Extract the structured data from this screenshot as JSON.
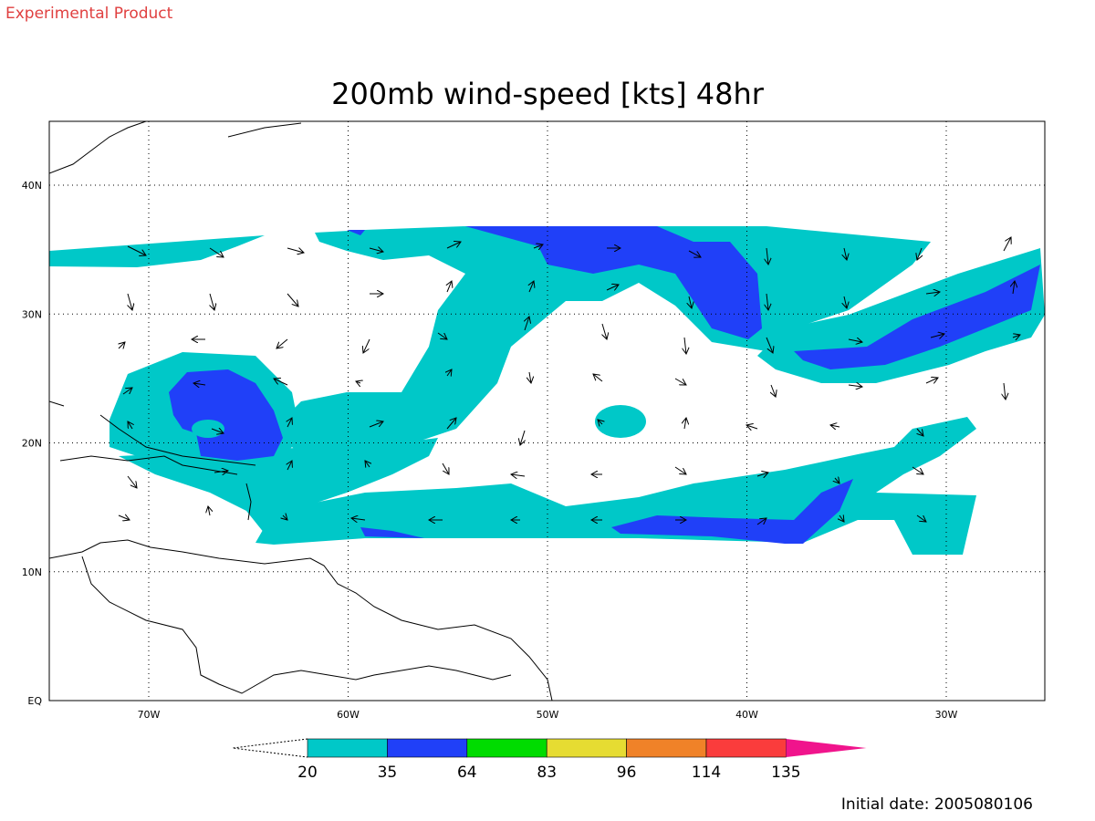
{
  "header": {
    "note": "Experimental Product"
  },
  "map": {
    "title": "200mb wind-speed [kts] 48hr",
    "lon_ticks": [
      "70W",
      "60W",
      "50W",
      "40W",
      "30W"
    ],
    "lat_ticks": [
      "40N",
      "30N",
      "20N",
      "10N",
      "EQ"
    ],
    "colorbar": {
      "levels": [
        20,
        35,
        64,
        83,
        96,
        114,
        135
      ],
      "colors": [
        "#00c8c8",
        "#2040f8",
        "#00dc00",
        "#e6dc32",
        "#f08228",
        "#fa3c3c",
        "#f0148c"
      ]
    },
    "initial_date": "Initial date: 2005080106"
  }
}
